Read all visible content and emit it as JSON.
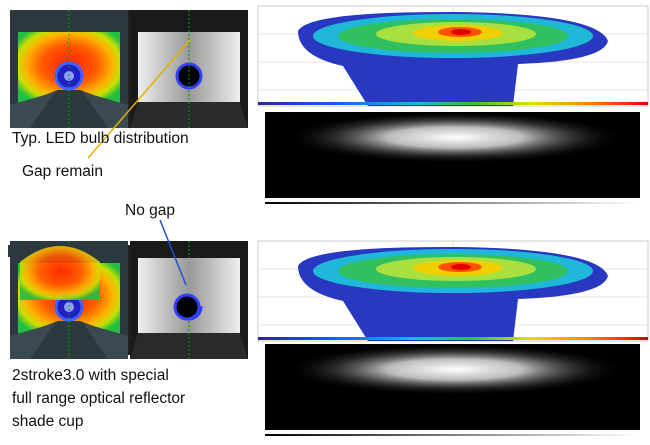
{
  "top": {
    "caption": "Typ. LED bulb distribution",
    "callout": "Gap remain"
  },
  "bottom": {
    "callout": "No gap",
    "caption": [
      "2stroke3.0 with special",
      "full range optical reflector",
      "shade cup"
    ]
  }
}
